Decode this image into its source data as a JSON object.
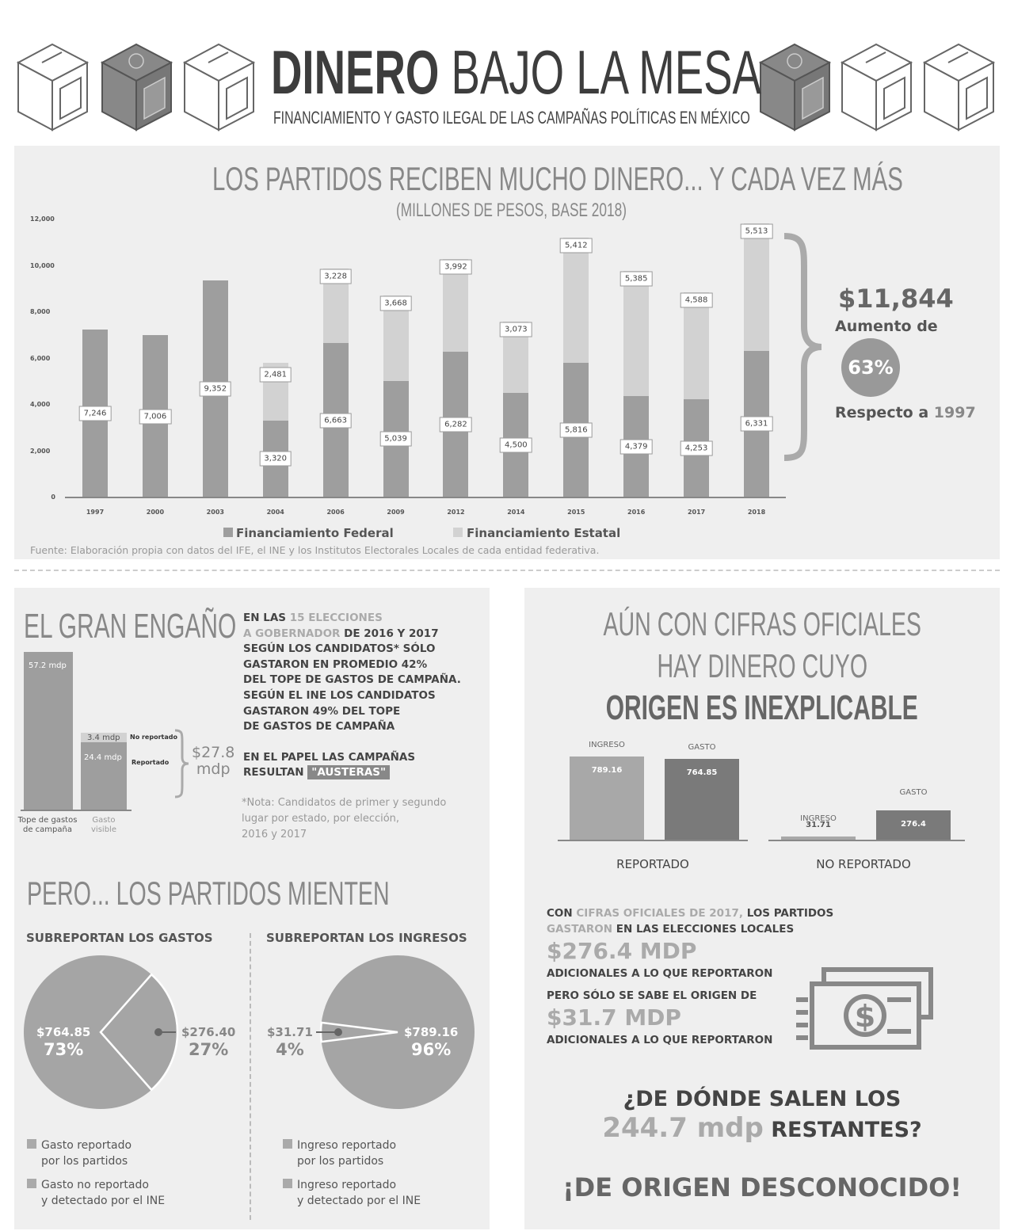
{
  "header": {
    "title_bold": "DINERO",
    "title_rest": "BAJO LA MESA",
    "subtitle": "FINANCIAMIENTO Y GASTO ILEGAL DE LAS CAMPAÑAS POLÍTICAS EN MÉXICO"
  },
  "chart_data": [
    {
      "type": "bar",
      "stacked": true,
      "title": "LOS PARTIDOS RECIBEN MUCHO DINERO... Y CADA VEZ MÁS",
      "subtitle": "(MILLONES DE PESOS, BASE 2018)",
      "categories": [
        "1997",
        "2000",
        "2003",
        "2004",
        "2006",
        "2009",
        "2012",
        "2014",
        "2015",
        "2016",
        "2017",
        "2018"
      ],
      "series": [
        {
          "name": "Financiamiento Federal",
          "color": "#9e9e9e",
          "values": [
            7246,
            7006,
            9352,
            3320,
            6663,
            5039,
            6282,
            4500,
            5816,
            4379,
            4253,
            6331
          ]
        },
        {
          "name": "Financiamiento Estatal",
          "color": "#d2d2d2",
          "values": [
            null,
            null,
            null,
            2481,
            3228,
            3668,
            3992,
            3073,
            5412,
            5385,
            4588,
            5513
          ]
        }
      ],
      "ylim": [
        0,
        12000
      ],
      "yticks": [
        "0",
        "2,000",
        "4,000",
        "6,000",
        "8,000",
        "10,000",
        "12,000"
      ],
      "legend": "bottom",
      "labels_federal": [
        "7,246",
        "7,006",
        "9,352",
        "3,320",
        "6,663",
        "5,039",
        "6,282",
        "4,500",
        "5,816",
        "4,379",
        "4,253",
        "6,331"
      ],
      "labels_estatal": [
        "",
        "",
        "",
        "2,481",
        "3,228",
        "3,668",
        "3,992",
        "3,073",
        "5,412",
        "5,385",
        "4,588",
        "5,513"
      ],
      "source": "Fuente: Elaboración propia con datos del IFE, el INE y los Institutos Electorales Locales de cada entidad federativa."
    },
    {
      "type": "bar",
      "categories": [
        "Tope de gastos de campaña",
        "Gasto visible"
      ],
      "series": [
        {
          "name": "Reportado",
          "values": [
            57.2,
            24.4
          ]
        },
        {
          "name": "No reportado",
          "values": [
            null,
            3.4
          ]
        }
      ],
      "labels": {
        "tope": "57.2 mdp",
        "reportado": "24.4 mdp",
        "no_reportado": "3.4 mdp",
        "no_reportado_name": "No reportado",
        "reportado_name": "Reportado",
        "cat1a": "Tope de gastos",
        "cat1b": "de campaña",
        "cat2a": "Gasto",
        "cat2b": "visible"
      }
    },
    {
      "type": "pie",
      "title": "SUBREPORTAN LOS GASTOS",
      "slices": [
        {
          "label": "Gasto reportado por los partidos",
          "value": 764.85,
          "pct": 73,
          "value_text": "$764.85",
          "pct_text": "73%",
          "color": "#a5a5a5"
        },
        {
          "label": "Gasto no reportado y detectado por el INE",
          "value": 276.4,
          "pct": 27,
          "value_text": "$276.40",
          "pct_text": "27%",
          "color": "#a5a5a5"
        }
      ],
      "legend": [
        "Gasto reportado",
        "por los partidos",
        "Gasto no reportado",
        "y detectado por el INE"
      ]
    },
    {
      "type": "pie",
      "title": "SUBREPORTAN LOS INGRESOS",
      "slices": [
        {
          "label": "Ingreso reportado por los partidos",
          "value": 789.16,
          "pct": 96,
          "value_text": "$789.16",
          "pct_text": "96%",
          "color": "#a5a5a5"
        },
        {
          "label": "Ingreso reportado y detectado por el INE",
          "value": 31.71,
          "pct": 4,
          "value_text": "$31.71",
          "pct_text": "4%",
          "color": "#a5a5a5"
        }
      ],
      "legend": [
        "Ingreso reportado",
        "por los partidos",
        "Ingreso reportado",
        "y detectado por el INE"
      ]
    },
    {
      "type": "bar",
      "groups": [
        {
          "name": "REPORTADO",
          "bars": [
            {
              "name": "INGRESO",
              "value": 789.16,
              "text": "789.16",
              "color": "#a8a8a8"
            },
            {
              "name": "GASTO",
              "value": 764.85,
              "text": "764.85",
              "color": "#7a7a7a"
            }
          ]
        },
        {
          "name": "NO REPORTADO",
          "bars": [
            {
              "name": "INGRESO",
              "value": 31.71,
              "text": "31.71",
              "color": "#a8a8a8"
            },
            {
              "name": "GASTO",
              "value": 276.4,
              "text": "276.4",
              "color": "#7a7a7a"
            }
          ]
        }
      ]
    }
  ],
  "summary": {
    "total": "$11,844",
    "increase_label": "Aumento de",
    "pct": "63%",
    "respect": "Respecto a",
    "year": "1997"
  },
  "engano": {
    "title": "EL GRAN ENGAÑO",
    "p1": [
      "EN LAS",
      "15 ELECCIONES",
      "A GOBERNADOR",
      "DE 2016 Y 2017",
      "SEGÚN LOS CANDIDATOS* SÓLO",
      "GASTARON EN PROMEDIO 42%",
      "DEL TOPE DE GASTOS DE CAMPAÑA.",
      "SEGÚN EL INE LOS CANDIDATOS",
      "GASTARON 49% DEL TOPE",
      "DE GASTOS DE CAMPAÑA"
    ],
    "p2": [
      "EN EL PAPEL LAS CAMPAÑAS",
      "RESULTAN",
      "\"AUSTERAS\""
    ],
    "total": "$27.8",
    "unit": "mdp",
    "note": [
      "*Nota: Candidatos de primer y segundo",
      "lugar por estado, por elección,",
      "2016 y 2017"
    ]
  },
  "mienten": {
    "title": "PERO... LOS PARTIDOS MIENTEN"
  },
  "origen": {
    "title": [
      "AÚN CON CIFRAS OFICIALES",
      "HAY DINERO CUYO",
      "ORIGEN ES INEXPLICABLE"
    ],
    "p": [
      "CON",
      "CIFRAS OFICIALES DE 2017,",
      "LOS PARTIDOS",
      "GASTARON",
      "EN LAS ELECCIONES LOCALES",
      "$276.4 MDP",
      "ADICIONALES A LO QUE REPORTARON",
      "PERO SÓLO SE SABE EL ORIGEN DE",
      "$31.7 MDP",
      "ADICIONALES A LO QUE REPORTARON"
    ],
    "q1": "¿DE DÓNDE SALEN LOS",
    "q2a": "244.7 mdp",
    "q2b": "RESTANTES?",
    "answer": "¡DE ORIGEN DESCONOCIDO!"
  },
  "icons": {
    "boxes": "ballot-box-icon",
    "money": "money-stack-icon"
  }
}
